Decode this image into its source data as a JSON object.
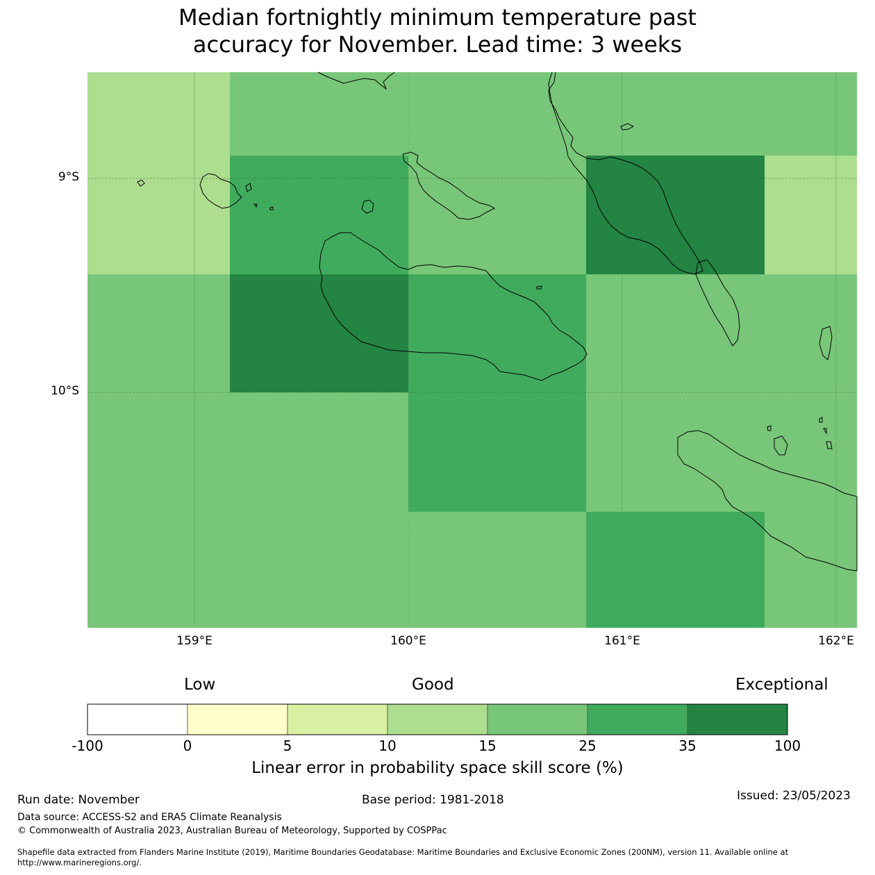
{
  "title": {
    "line1": "Median fortnightly minimum temperature past",
    "line2": "accuracy for November. Lead time: 3 weeks"
  },
  "map": {
    "lat_labels": [
      "9°S",
      "10°S"
    ],
    "lon_labels": [
      "159°E",
      "160°E",
      "161°E",
      "162°E"
    ],
    "grid_cells": [
      {
        "row": 0,
        "col": 0,
        "score_band": "10-15"
      },
      {
        "row": 0,
        "col": 1,
        "score_band": "15-25"
      },
      {
        "row": 0,
        "col": 2,
        "score_band": "15-25"
      },
      {
        "row": 0,
        "col": 3,
        "score_band": "15-25"
      },
      {
        "row": 0,
        "col": 4,
        "score_band": "15-25"
      },
      {
        "row": 1,
        "col": 0,
        "score_band": "10-15"
      },
      {
        "row": 1,
        "col": 1,
        "score_band": "25-35"
      },
      {
        "row": 1,
        "col": 2,
        "score_band": "15-25"
      },
      {
        "row": 1,
        "col": 3,
        "score_band": "35-100"
      },
      {
        "row": 1,
        "col": 4,
        "score_band": "10-15"
      },
      {
        "row": 2,
        "col": 0,
        "score_band": "15-25"
      },
      {
        "row": 2,
        "col": 1,
        "score_band": "35-100"
      },
      {
        "row": 2,
        "col": 2,
        "score_band": "25-35"
      },
      {
        "row": 2,
        "col": 3,
        "score_band": "15-25"
      },
      {
        "row": 2,
        "col": 4,
        "score_band": "15-25"
      },
      {
        "row": 3,
        "col": 0,
        "score_band": "15-25"
      },
      {
        "row": 3,
        "col": 1,
        "score_band": "15-25"
      },
      {
        "row": 3,
        "col": 2,
        "score_band": "25-35"
      },
      {
        "row": 3,
        "col": 3,
        "score_band": "15-25"
      },
      {
        "row": 3,
        "col": 4,
        "score_band": "15-25"
      },
      {
        "row": 4,
        "col": 0,
        "score_band": "15-25"
      },
      {
        "row": 4,
        "col": 1,
        "score_band": "15-25"
      },
      {
        "row": 4,
        "col": 2,
        "score_band": "15-25"
      },
      {
        "row": 4,
        "col": 3,
        "score_band": "25-35"
      },
      {
        "row": 4,
        "col": 4,
        "score_band": "15-25"
      }
    ]
  },
  "legend": {
    "categories": [
      "Low",
      "Good",
      "Exceptional"
    ],
    "ticks": [
      "-100",
      "0",
      "5",
      "10",
      "15",
      "25",
      "35",
      "100"
    ],
    "bands": [
      {
        "range": "-100-0",
        "color": "#ffffff"
      },
      {
        "range": "0-5",
        "color": "#ffffcc"
      },
      {
        "range": "5-10",
        "color": "#d9f0a3"
      },
      {
        "range": "10-15",
        "color": "#addd8e"
      },
      {
        "range": "15-25",
        "color": "#78c679"
      },
      {
        "range": "25-35",
        "color": "#41ab5d"
      },
      {
        "range": "35-100",
        "color": "#238443"
      }
    ],
    "title": "Linear error in probability space skill score (%)"
  },
  "footer": {
    "run_date": "Run date: November",
    "base_period": "Base period: 1981-2018",
    "issued": "Issued: 23/05/2023",
    "data_source": "Data source: ACCESS-S2 and ERA5 Climate Reanalysis",
    "copyright": "© Commonwealth of Australia 2023, Australian Bureau of Meteorology, Supported by COSPPac",
    "shapefile_line1": "Shapefile data extracted from Flanders Marine Institute (2019), Maritime Boundaries Geodatabase: Maritime Boundaries and Exclusive Economic Zones (200NM), version 11. Available online at",
    "shapefile_line2": "http://www.marineregions.org/."
  }
}
